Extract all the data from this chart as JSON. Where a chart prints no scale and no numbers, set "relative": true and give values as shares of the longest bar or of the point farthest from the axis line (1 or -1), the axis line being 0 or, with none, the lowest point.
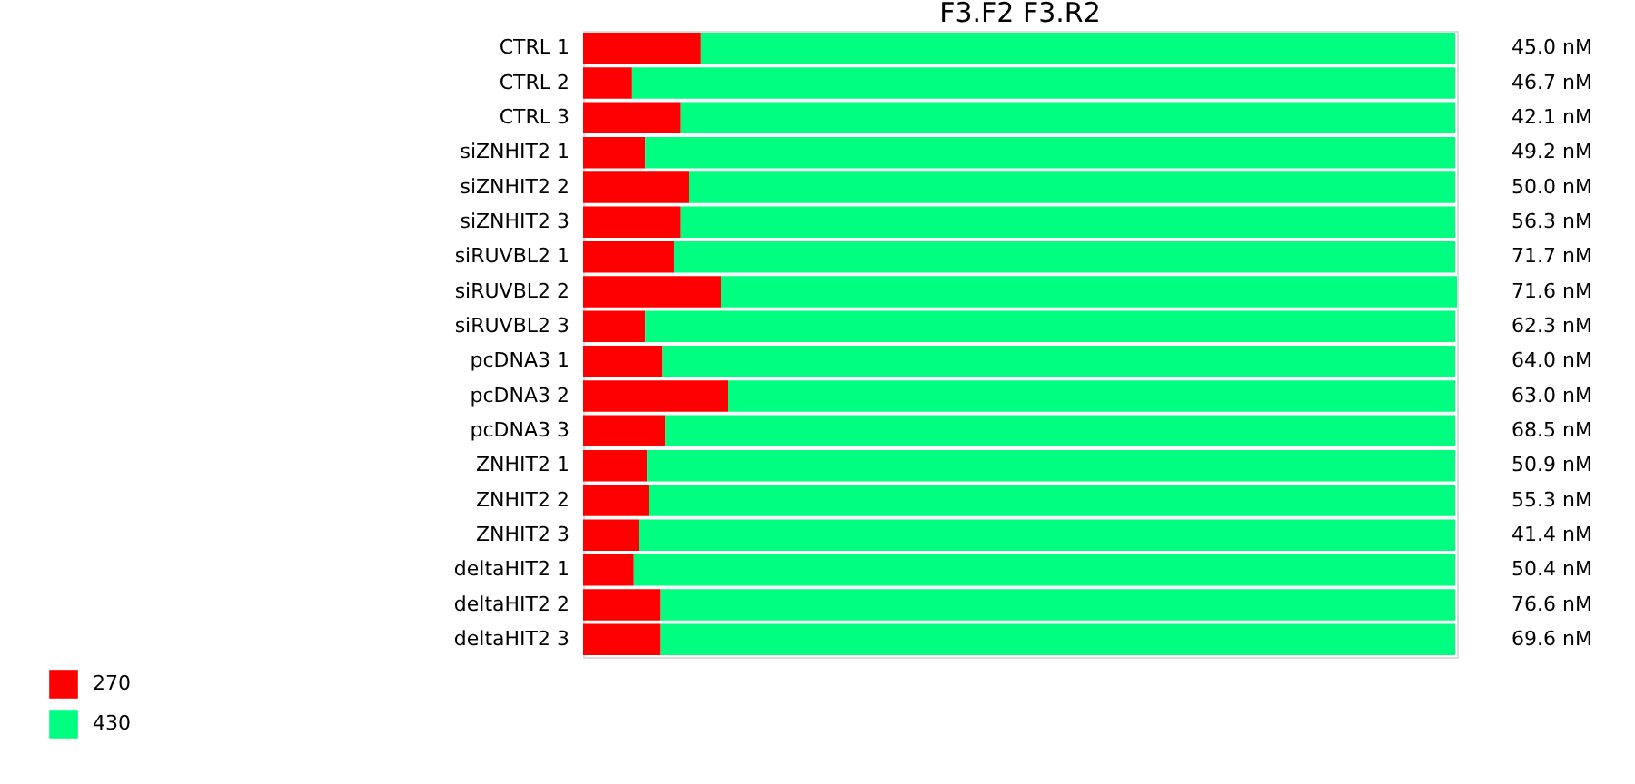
{
  "chart_data": {
    "type": "bar",
    "orientation": "horizontal",
    "stacked": true,
    "relative": true,
    "title": "F3.F2  F3.R2",
    "categories": [
      "CTRL 1",
      "CTRL 2",
      "CTRL 3",
      "siZNHIT2 1",
      "siZNHIT2 2",
      "siZNHIT2 3",
      "siRUVBL2 1",
      "siRUVBL2 2",
      "siRUVBL2 3",
      "pcDNA3 1",
      "pcDNA3 2",
      "pcDNA3 3",
      "ZNHIT2 1",
      "ZNHIT2 2",
      "ZNHIT2 3",
      "deltaHIT2 1",
      "deltaHIT2 2",
      "deltaHIT2 3"
    ],
    "series": [
      {
        "name": "270",
        "color": "#ff0000",
        "values": [
          0.135,
          0.056,
          0.112,
          0.071,
          0.121,
          0.112,
          0.104,
          0.158,
          0.071,
          0.091,
          0.166,
          0.094,
          0.073,
          0.075,
          0.064,
          0.058,
          0.089,
          0.089
        ]
      },
      {
        "name": "430",
        "color": "#00ff80",
        "values": [
          0.863,
          0.942,
          0.886,
          0.927,
          0.877,
          0.886,
          0.894,
          0.842,
          0.927,
          0.907,
          0.832,
          0.904,
          0.925,
          0.923,
          0.934,
          0.94,
          0.909,
          0.909
        ]
      }
    ],
    "annotations": [
      "45.0 nM",
      "46.7 nM",
      "42.1 nM",
      "49.2 nM",
      "50.0 nM",
      "56.3 nM",
      "71.7 nM",
      "71.6 nM",
      "62.3 nM",
      "64.0 nM",
      "63.0 nM",
      "68.5 nM",
      "50.9 nM",
      "55.3 nM",
      "41.4 nM",
      "50.4 nM",
      "76.6 nM",
      "69.6 nM"
    ],
    "legend": "bottom left",
    "grid": false
  }
}
